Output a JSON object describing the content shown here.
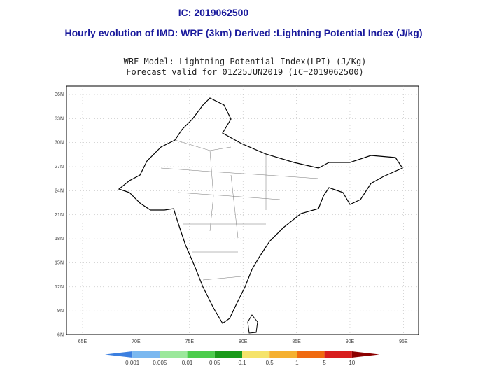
{
  "header": {
    "ic": "IC: 2019062500",
    "title": "Hourly evolution of IMD: WRF (3km) Derived :Lightning Potential Index (J/kg)"
  },
  "map": {
    "title_line1": "WRF Model: Lightning Potential Index(LPI) (J/Kg)",
    "title_line2": "Forecast valid for 01Z25JUN2019 (IC=2019062500)",
    "lat_labels": [
      "36N",
      "33N",
      "30N",
      "27N",
      "24N",
      "21N",
      "18N",
      "15N",
      "12N",
      "9N",
      "6N"
    ],
    "lon_labels": [
      "65E",
      "70E",
      "75E",
      "80E",
      "85E",
      "90E",
      "95E"
    ]
  },
  "colorbar": {
    "labels": [
      "0.001",
      "0.005",
      "0.01",
      "0.05",
      "0.1",
      "0.5",
      "1",
      "5",
      "10"
    ],
    "colors": [
      "#3b7fe0",
      "#7ab8f0",
      "#9be89b",
      "#4ccc4c",
      "#1a9a1a",
      "#f5e36a",
      "#f5b030",
      "#f06a10",
      "#d81e1e",
      "#8c0000"
    ]
  }
}
